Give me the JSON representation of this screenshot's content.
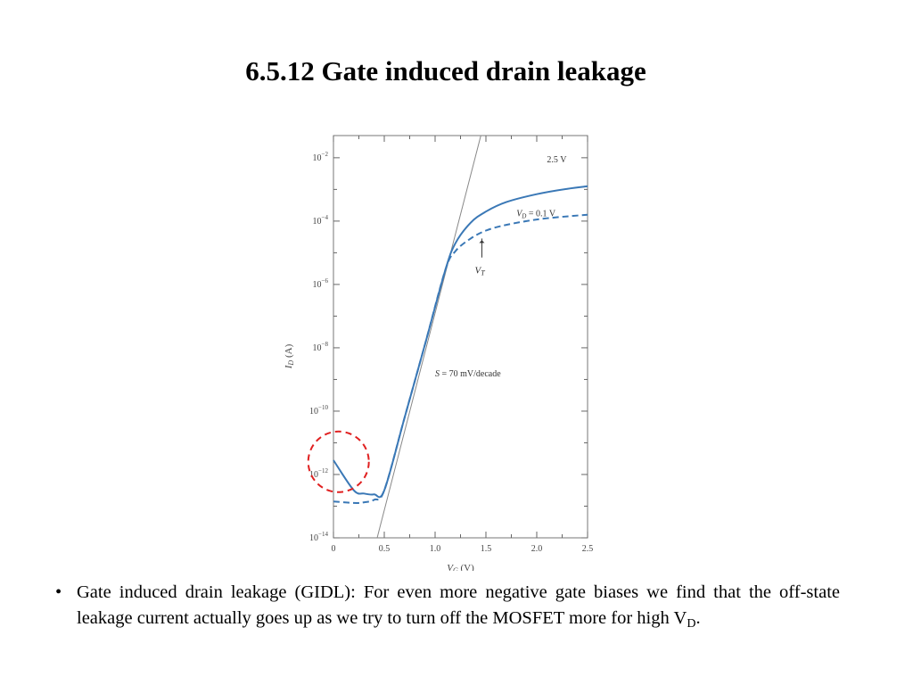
{
  "slide": {
    "title": "6.5.12 Gate induced drain leakage",
    "bullet_text": "Gate induced drain leakage (GIDL): For even more negative gate biases we find that the off-state leakage current actually goes up as we try to turn off the MOSFET more for high V",
    "bullet_sub": "D",
    "bullet_end": "."
  },
  "chart_data": {
    "type": "line",
    "xlabel_main": "V",
    "xlabel_sub": "G",
    "xlabel_unit": " (V)",
    "ylabel_main": "I",
    "ylabel_sub": "D",
    "ylabel_unit": " (A)",
    "xlim": [
      0,
      2.5
    ],
    "ylim_exp": [
      -14,
      -1.3
    ],
    "xticks": [
      "0",
      "0.5",
      "1.0",
      "1.5",
      "2.0",
      "2.5"
    ],
    "yticks": [
      {
        "base": "10",
        "exp": "−2",
        "v": -2
      },
      {
        "base": "10",
        "exp": "−4",
        "v": -4
      },
      {
        "base": "10",
        "exp": "−6",
        "v": -6
      },
      {
        "base": "10",
        "exp": "−8",
        "v": -8
      },
      {
        "base": "10",
        "exp": "−10",
        "v": -10
      },
      {
        "base": "10",
        "exp": "−12",
        "v": -12
      },
      {
        "base": "10",
        "exp": "−14",
        "v": -14
      }
    ],
    "series": [
      {
        "name": "2.5 V",
        "style": "solid",
        "color": "#3a78b6",
        "x": [
          0,
          0.2,
          0.3,
          0.4,
          0.5,
          0.7,
          0.9,
          1.1,
          1.2,
          1.35,
          1.5,
          1.7,
          2.0,
          2.3,
          2.5
        ],
        "y": [
          -11.55,
          -12.5,
          -12.6,
          -12.63,
          -12.5,
          -10.2,
          -7.9,
          -5.55,
          -4.7,
          -4.05,
          -3.7,
          -3.4,
          -3.15,
          -2.98,
          -2.9
        ]
      },
      {
        "name": "V_D = 0.1 V",
        "style": "dashed",
        "color": "#3a78b6",
        "x": [
          0,
          0.2,
          0.3,
          0.4,
          0.5,
          0.7,
          0.9,
          1.1,
          1.2,
          1.35,
          1.5,
          1.7,
          2.0,
          2.3,
          2.5
        ],
        "y": [
          -12.85,
          -12.9,
          -12.88,
          -12.8,
          -12.5,
          -10.2,
          -7.9,
          -5.55,
          -4.95,
          -4.55,
          -4.3,
          -4.12,
          -3.95,
          -3.85,
          -3.8
        ]
      }
    ],
    "reference_line": {
      "x1": 0.43,
      "y1": -14,
      "x2": 1.45,
      "y2": -1.3,
      "color": "#888888"
    },
    "labels": {
      "v25": "2.5 V",
      "vd_main": "V",
      "vd_sub": "D",
      "vd_rest": " = 0.1 V",
      "vt_main": "V",
      "vt_sub": "T",
      "slope_main": "S",
      "slope_rest": " = 70 mV/decade"
    },
    "highlight": {
      "shape": "dashed-circle",
      "color": "#e02020",
      "cx": 0.05,
      "cy": -11.6
    },
    "grid": false
  }
}
